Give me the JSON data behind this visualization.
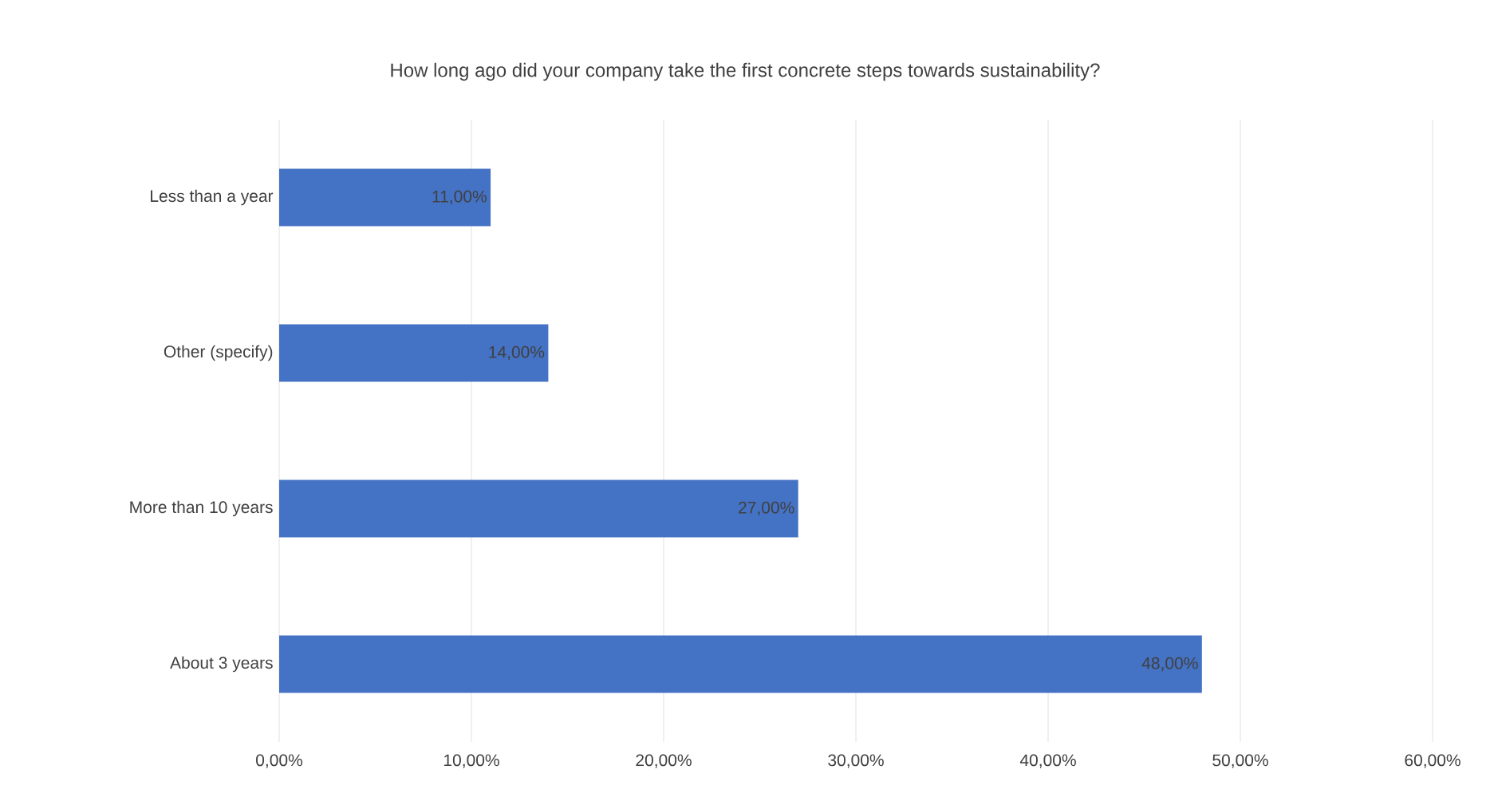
{
  "chart_data": {
    "type": "bar",
    "orientation": "horizontal",
    "title": "How long ago did your company take the first concrete steps towards sustainability?",
    "categories": [
      "Less than a year",
      "Other (specify)",
      "More than 10 years",
      "About 3 years"
    ],
    "values": [
      11,
      14,
      27,
      48
    ],
    "value_labels": [
      "11,00%",
      "14,00%",
      "27,00%",
      "48,00%"
    ],
    "color": "#4472c4",
    "xlim": [
      0,
      60
    ],
    "xticks": [
      {
        "value": 0,
        "label": "0,00%"
      },
      {
        "value": 10,
        "label": "10,00%"
      },
      {
        "value": 20,
        "label": "20,00%"
      },
      {
        "value": 30,
        "label": "30,00%"
      },
      {
        "value": 40,
        "label": "40,00%"
      },
      {
        "value": 50,
        "label": "50,00%"
      },
      {
        "value": 60,
        "label": "60,00%"
      }
    ],
    "grid": "x"
  }
}
